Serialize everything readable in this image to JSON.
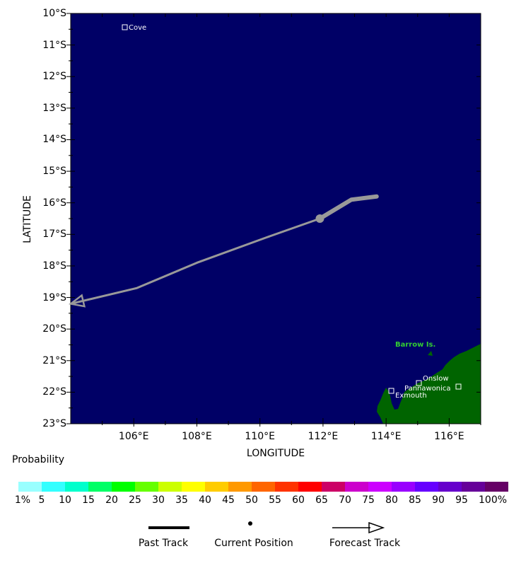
{
  "map": {
    "ocean_color": "#000066",
    "land_color": "#006400",
    "track_color": "#999999",
    "island_label_color": "#33cc33",
    "lat_labels": [
      "10°S",
      "11°S",
      "12°S",
      "13°S",
      "14°S",
      "15°S",
      "16°S",
      "17°S",
      "18°S",
      "19°S",
      "20°S",
      "21°S",
      "22°S",
      "23°S"
    ],
    "lon_labels": [
      "106°E",
      "108°E",
      "110°E",
      "112°E",
      "114°E",
      "116°E"
    ],
    "lat_title": "LATITUDE",
    "lon_title": "LONGITUDE",
    "places": [
      {
        "name": "Cove"
      },
      {
        "name": "Onslow"
      },
      {
        "name": "Pannawonica"
      },
      {
        "name": "Exmouth"
      }
    ],
    "island": "Barrow Is.",
    "past_track": [
      [
        113.7,
        15.8
      ],
      [
        112.9,
        15.9
      ],
      [
        111.9,
        16.5
      ]
    ],
    "current_position": [
      111.9,
      16.5
    ],
    "forecast_track": [
      [
        111.9,
        16.5
      ],
      [
        110.2,
        17.1
      ],
      [
        108.0,
        17.9
      ],
      [
        106.1,
        18.7
      ],
      [
        104.0,
        19.2
      ]
    ]
  },
  "legend": {
    "probability_title": "Probability",
    "colors": [
      "#99ffff",
      "#33ffff",
      "#00ffcc",
      "#00ff66",
      "#00ff00",
      "#66ff00",
      "#ccff00",
      "#ffff00",
      "#ffcc00",
      "#ff9900",
      "#ff6600",
      "#ff3300",
      "#ff0000",
      "#cc0066",
      "#cc00cc",
      "#cc00ff",
      "#9900ff",
      "#6600ff",
      "#6600cc",
      "#660099",
      "#660066"
    ],
    "ticks": [
      "1%",
      "5",
      "10",
      "15",
      "20",
      "25",
      "30",
      "35",
      "40",
      "45",
      "50",
      "55",
      "60",
      "65",
      "70",
      "75",
      "80",
      "85",
      "90",
      "95",
      "100%"
    ],
    "past_track_label": "Past Track",
    "current_position_label": "Current Position",
    "forecast_track_label": "Forecast Track"
  }
}
